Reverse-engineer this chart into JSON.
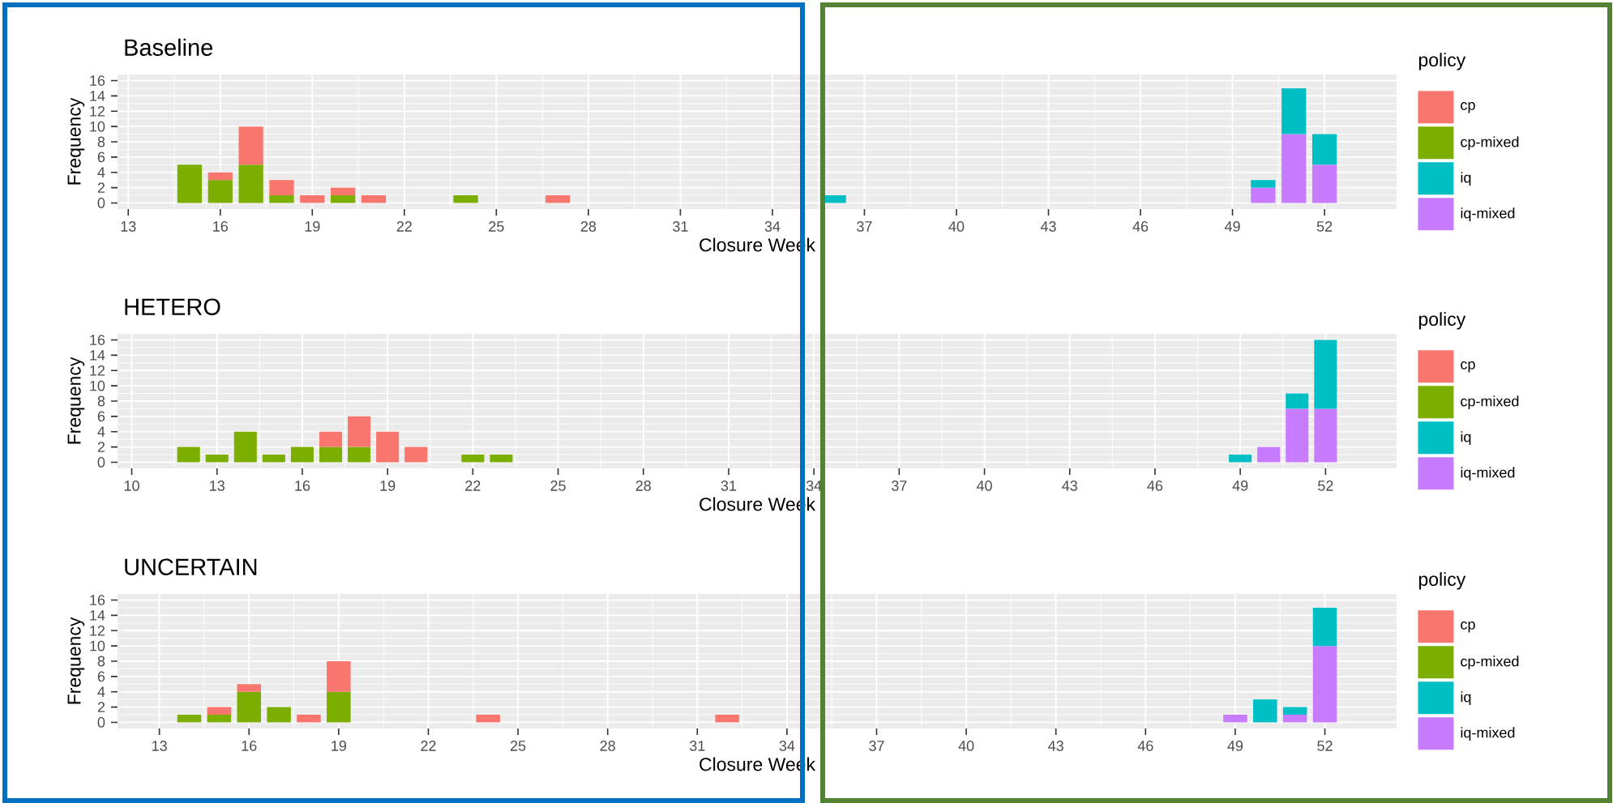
{
  "chart_data": [
    {
      "type": "bar",
      "title": "Baseline",
      "xlabel": "Closure Week",
      "ylabel": "Frequency",
      "legend_title": "policy",
      "stacked": true,
      "grid": true,
      "legend": "right",
      "x": [
        15,
        16,
        17,
        18,
        19,
        20,
        21,
        24,
        27,
        36,
        50,
        51,
        52
      ],
      "series": [
        {
          "name": "iq-mixed",
          "color": "#c77cff",
          "values": [
            null,
            null,
            null,
            null,
            null,
            null,
            null,
            null,
            null,
            null,
            2,
            9,
            5
          ]
        },
        {
          "name": "iq",
          "color": "#00bfc4",
          "values": [
            null,
            null,
            null,
            null,
            null,
            null,
            null,
            null,
            null,
            1,
            1,
            6,
            4
          ]
        },
        {
          "name": "cp-mixed",
          "color": "#7cae00",
          "values": [
            5,
            3,
            5,
            1,
            null,
            1,
            null,
            1,
            null,
            null,
            null,
            null,
            null
          ]
        },
        {
          "name": "cp",
          "color": "#f8766d",
          "values": [
            null,
            1,
            5,
            2,
            1,
            1,
            1,
            null,
            1,
            null,
            null,
            null,
            null
          ]
        }
      ],
      "xlim": [
        12.65,
        54.35
      ],
      "xticks": [
        13,
        16,
        19,
        22,
        25,
        28,
        31,
        34,
        37,
        40,
        43,
        46,
        49,
        52
      ],
      "ylim": [
        -0.8,
        16.8
      ],
      "yticks": [
        0,
        2,
        4,
        6,
        8,
        10,
        12,
        14,
        16
      ]
    },
    {
      "type": "bar",
      "title": "HETERO",
      "xlabel": "Closure Week",
      "ylabel": "Frequency",
      "legend_title": "policy",
      "stacked": true,
      "grid": true,
      "legend": "right",
      "x": [
        12,
        13,
        14,
        15,
        16,
        17,
        18,
        19,
        20,
        22,
        23,
        49,
        50,
        51,
        52
      ],
      "series": [
        {
          "name": "iq-mixed",
          "color": "#c77cff",
          "values": [
            null,
            null,
            null,
            null,
            null,
            null,
            null,
            null,
            null,
            null,
            null,
            null,
            2,
            7,
            7
          ]
        },
        {
          "name": "iq",
          "color": "#00bfc4",
          "values": [
            null,
            null,
            null,
            null,
            null,
            null,
            null,
            null,
            null,
            null,
            null,
            1,
            null,
            2,
            9
          ]
        },
        {
          "name": "cp-mixed",
          "color": "#7cae00",
          "values": [
            2,
            1,
            4,
            1,
            2,
            2,
            2,
            null,
            null,
            1,
            1,
            null,
            null,
            null,
            null
          ]
        },
        {
          "name": "cp",
          "color": "#f8766d",
          "values": [
            null,
            null,
            null,
            null,
            null,
            2,
            4,
            4,
            2,
            null,
            null,
            null,
            null,
            null,
            null
          ]
        }
      ],
      "xlim": [
        9.5,
        54.5
      ],
      "xticks": [
        10,
        13,
        16,
        19,
        22,
        25,
        28,
        31,
        34,
        37,
        40,
        43,
        46,
        49,
        52
      ],
      "ylim": [
        -0.8,
        16.8
      ],
      "yticks": [
        0,
        2,
        4,
        6,
        8,
        10,
        12,
        14,
        16
      ]
    },
    {
      "type": "bar",
      "title": "UNCERTAIN",
      "xlabel": "Closure Week",
      "ylabel": "Frequency",
      "legend_title": "policy",
      "stacked": true,
      "grid": true,
      "legend": "right",
      "x": [
        14,
        15,
        16,
        17,
        18,
        19,
        24,
        32,
        49,
        50,
        51,
        52
      ],
      "series": [
        {
          "name": "iq-mixed",
          "color": "#c77cff",
          "values": [
            null,
            null,
            null,
            null,
            null,
            null,
            null,
            null,
            1,
            null,
            1,
            10
          ]
        },
        {
          "name": "iq",
          "color": "#00bfc4",
          "values": [
            null,
            null,
            null,
            null,
            null,
            null,
            null,
            null,
            null,
            3,
            1,
            5
          ]
        },
        {
          "name": "cp-mixed",
          "color": "#7cae00",
          "values": [
            1,
            1,
            4,
            2,
            null,
            4,
            null,
            null,
            null,
            null,
            null,
            null
          ]
        },
        {
          "name": "cp",
          "color": "#f8766d",
          "values": [
            null,
            1,
            1,
            null,
            1,
            4,
            1,
            1,
            null,
            null,
            null,
            null
          ]
        }
      ],
      "xlim": [
        11.6,
        54.4
      ],
      "xticks": [
        13,
        16,
        19,
        22,
        25,
        28,
        31,
        34,
        37,
        40,
        43,
        46,
        49,
        52
      ],
      "ylim": [
        -0.8,
        16.8
      ],
      "yticks": [
        0,
        2,
        4,
        6,
        8,
        10,
        12,
        14,
        16
      ]
    }
  ]
}
